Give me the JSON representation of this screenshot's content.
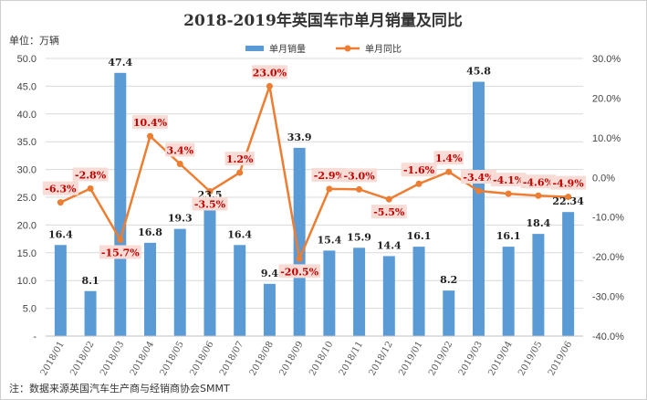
{
  "chart_data": {
    "type": "bar",
    "title": "2018-2019年英国车市单月销量及同比",
    "unit_label": "单位：万辆",
    "categories": [
      "2018/01",
      "2018/02",
      "2018/03",
      "2018/04",
      "2018/05",
      "2018/06",
      "2018/07",
      "2018/08",
      "2018/09",
      "2018/10",
      "2018/11",
      "2018/12",
      "2019/01",
      "2019/02",
      "2019/03",
      "2019/04",
      "2019/05",
      "2019/06"
    ],
    "series": [
      {
        "name": "单月销量",
        "type": "bar",
        "axis": "left",
        "color": "#5b9bd5",
        "values": [
          16.4,
          8.1,
          47.4,
          16.8,
          19.3,
          23.5,
          16.4,
          9.4,
          33.9,
          15.4,
          15.9,
          14.4,
          16.1,
          8.2,
          45.8,
          16.1,
          18.4,
          22.34
        ],
        "labels": [
          "16.4",
          "8.1",
          "47.4",
          "16.8",
          "19.3",
          "23.5",
          "16.4",
          "9.4",
          "33.9",
          "15.4",
          "15.9",
          "14.4",
          "16.1",
          "8.2",
          "45.8",
          "16.1",
          "18.4",
          "22.34"
        ]
      },
      {
        "name": "单月同比",
        "type": "line",
        "axis": "right",
        "color": "#ed7d31",
        "values": [
          -6.3,
          -2.8,
          -15.7,
          10.4,
          3.4,
          -3.5,
          1.2,
          23.0,
          -20.5,
          -2.9,
          -3.0,
          -5.5,
          -1.6,
          1.4,
          -3.4,
          -4.1,
          -4.6,
          -4.9
        ],
        "labels": [
          "-6.3%",
          "-2.8%",
          "-15.7%",
          "10.4%",
          "3.4%",
          "-3.5%",
          "1.2%",
          "23.0%",
          "-20.5%",
          "-2.9%",
          "-3.0%",
          "-5.5%",
          "-1.6%",
          "1.4%",
          "-3.4%",
          "-4.1%",
          "-4.6%",
          "-4.9%"
        ]
      }
    ],
    "left_axis": {
      "ylim": [
        0,
        50
      ],
      "ticks": [
        "-",
        "5.0",
        "10.0",
        "15.0",
        "20.0",
        "25.0",
        "30.0",
        "35.0",
        "40.0",
        "45.0",
        "50.0"
      ]
    },
    "right_axis": {
      "ylim": [
        -40,
        30
      ],
      "ticks": [
        "-40.0%",
        "-30.0%",
        "-20.0%",
        "-10.0%",
        "0.0%",
        "10.0%",
        "20.0%",
        "30.0%"
      ]
    },
    "legend": "top",
    "grid": true,
    "note": "注：数据来源英国汽车生产商与经销商协会SMMT"
  }
}
